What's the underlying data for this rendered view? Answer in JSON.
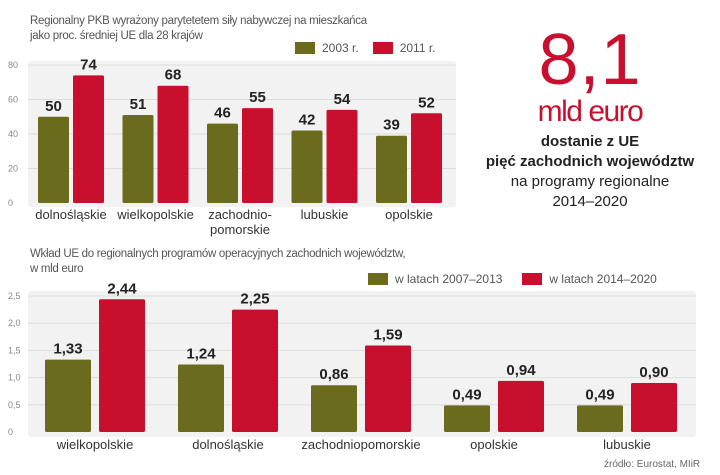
{
  "colors": {
    "series_a": "#6b6b1e",
    "series_b": "#c8102e",
    "plot_bg": "#f2f2f2",
    "grid": "#dddddd"
  },
  "chart_data": [
    {
      "type": "bar",
      "title": "Regionalny PKB wyrażony parytetetem siły nabywczej na mieszkańca jako proc. średniej UE dla 28 krajów",
      "title_lines": [
        "Regionalny PKB wyrażony parytetetem siły nabywczej na mieszkańca",
        "jako proc. średniej UE dla 28 krajów"
      ],
      "xlabel": "",
      "ylabel": "",
      "ylim": [
        0,
        80
      ],
      "yticks": [
        0,
        20,
        40,
        60,
        80
      ],
      "ytick_labels": [
        "0",
        "20",
        "40",
        "60",
        "80"
      ],
      "grid": true,
      "legend_position": "top-right",
      "categories": [
        "dolnośląskie",
        "wielkopolskie",
        "zachodnio-\npomorskie",
        "lubuskie",
        "opolskie"
      ],
      "category_lines": [
        [
          "dolnośląskie"
        ],
        [
          "wielkopolskie"
        ],
        [
          "zachodnio-",
          "pomorskie"
        ],
        [
          "lubuskie"
        ],
        [
          "opolskie"
        ]
      ],
      "series": [
        {
          "name": "2003 r.",
          "values": [
            50,
            51,
            46,
            42,
            39
          ],
          "labels": [
            "50",
            "51",
            "46",
            "42",
            "39"
          ]
        },
        {
          "name": "2011 r.",
          "values": [
            74,
            68,
            55,
            54,
            52
          ],
          "labels": [
            "74",
            "68",
            "55",
            "54",
            "52"
          ]
        }
      ]
    },
    {
      "type": "bar",
      "title": "Wkład UE do regionalnych programów operacyjnych zachodnich województw, w mld euro",
      "title_lines": [
        "Wkład UE do regionalnych programów operacyjnych zachodnich województw,",
        "w mld euro"
      ],
      "xlabel": "",
      "ylabel": "mld euro",
      "ylim": [
        0,
        2.5
      ],
      "yticks": [
        0,
        0.5,
        1.0,
        1.5,
        2.0,
        2.5
      ],
      "ytick_labels": [
        "0",
        "0,5",
        "1,0",
        "1,5",
        "2,0",
        "2,5"
      ],
      "grid": true,
      "legend_position": "top-right",
      "categories": [
        "wielkopolskie",
        "dolnośląskie",
        "zachodniopomorskie",
        "opolskie",
        "lubuskie"
      ],
      "category_lines": [
        [
          "wielkopolskie"
        ],
        [
          "dolnośląskie"
        ],
        [
          "zachodniopomorskie"
        ],
        [
          "opolskie"
        ],
        [
          "lubuskie"
        ]
      ],
      "series": [
        {
          "name": "w latach 2007–2013",
          "values": [
            1.33,
            1.24,
            0.86,
            0.49,
            0.49
          ],
          "labels": [
            "1,33",
            "1,24",
            "0,86",
            "0,49",
            "0,49"
          ]
        },
        {
          "name": "w latach 2014–2020",
          "values": [
            2.44,
            2.25,
            1.59,
            0.94,
            0.9
          ],
          "labels": [
            "2,44",
            "2,25",
            "1,59",
            "0,94",
            "0,90"
          ]
        }
      ]
    }
  ],
  "headline": {
    "number": "8,1",
    "unit": "mld euro",
    "line1": "dostanie z UE",
    "line2": "pięć zachodnich województw",
    "line3": "na programy regionalne",
    "line4": "2014–2020"
  },
  "source": "źródło: Eurostat, MIiR"
}
